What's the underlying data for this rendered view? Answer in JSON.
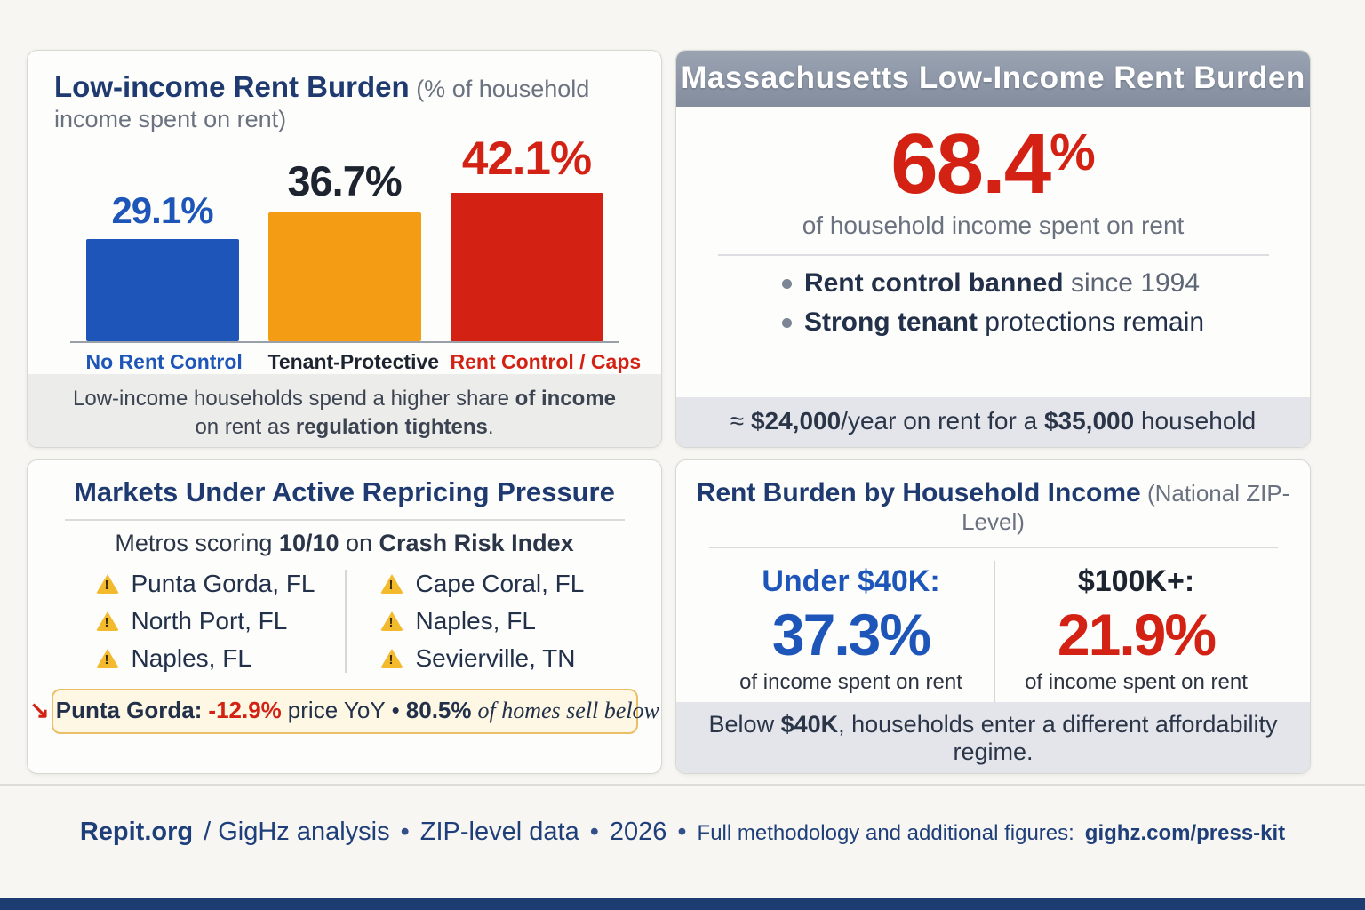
{
  "colors": {
    "navy": "#1e3a70",
    "blue": "#1d56b8",
    "orange": "#f59c15",
    "red": "#d32114",
    "dark": "#1d2430",
    "gray_text": "#6a7280",
    "header_gray": "#8c95a5",
    "band_bg": "#e3e5ea",
    "highlight_bg": "#fdf7e3",
    "highlight_border": "#eabf66"
  },
  "chart_panel": {
    "title": "Low-income Rent Burden",
    "subtitle": " (% of household income spent on rent)",
    "caption": {
      "t1": "Low-income households spend a higher share ",
      "b1": "of income",
      "t2": " on rent as ",
      "b2": "regulation tightens",
      "t3": "."
    }
  },
  "chart_data": {
    "type": "bar",
    "title": "Low-income Rent Burden (% of household income spent on rent)",
    "categories": [
      "No Rent Control",
      "Tenant-Protective",
      "Rent Control / Caps"
    ],
    "values": [
      29.1,
      36.7,
      42.1
    ],
    "value_labels": [
      "29.1%",
      "36.7%",
      "42.1%"
    ],
    "bar_colors": [
      "#1d56b8",
      "#f59c15",
      "#d32114"
    ],
    "label_colors": [
      "#1d56b8",
      "#1d2430",
      "#d32114"
    ],
    "ylabel": "% of household income spent on rent",
    "xlabel": "",
    "ylim": [
      0,
      45
    ],
    "grid": false,
    "legend": "none"
  },
  "massachusetts_panel": {
    "header": "Massachusetts Low-Income Rent Burden",
    "big_value": "68.4",
    "big_value_suffix": "%",
    "big_caption": "of household income spent on rent",
    "bullets": [
      {
        "bold": "Rent control banned",
        "rest": " since 1994"
      },
      {
        "bold": "Strong tenant",
        "rest": " protections remain"
      }
    ],
    "band": {
      "t1": "≈ ",
      "b1": "$24,000",
      "t2": "/year on rent for a ",
      "b2": "$35,000",
      "t3": " household"
    }
  },
  "markets_panel": {
    "title": "Markets Under Active Repricing Pressure",
    "subtitle": {
      "t1": "Metros scoring ",
      "b1": "10/10",
      "t2": " on ",
      "b2": "Crash Risk Index"
    },
    "col_left": [
      "Punta Gorda, FL",
      "North Port, FL",
      "Naples, FL"
    ],
    "col_right": [
      "Cape Coral, FL",
      "Naples, FL",
      "Sevierville, TN"
    ],
    "highlight": {
      "arrow": "↘",
      "b1": "Punta Gorda:",
      "r1": " -12.9%",
      "t1": " price YoY",
      "dot": " • ",
      "b2": "80.5%",
      "t2": " of homes sell below"
    }
  },
  "income_panel": {
    "title": "Rent Burden by Household Income",
    "title_suffix": " (National ZIP-Level)",
    "left": {
      "label": "Under $40K:",
      "value": "37.3%",
      "caption": "of income spent on rent"
    },
    "right": {
      "label": "$100K+:",
      "value": "21.9%",
      "caption": "of income spent on rent"
    },
    "band": {
      "t1": "Below ",
      "b1": "$40K",
      "t2": ", households enter a different affordability regime."
    }
  },
  "footer": {
    "brand": "Repit.org",
    "analysis": "/ GigHz analysis",
    "bullet": "•",
    "item1": "ZIP-level data",
    "item2": "2026",
    "note": "Full methodology and additional figures:",
    "link": "gighz.com/press-kit"
  }
}
